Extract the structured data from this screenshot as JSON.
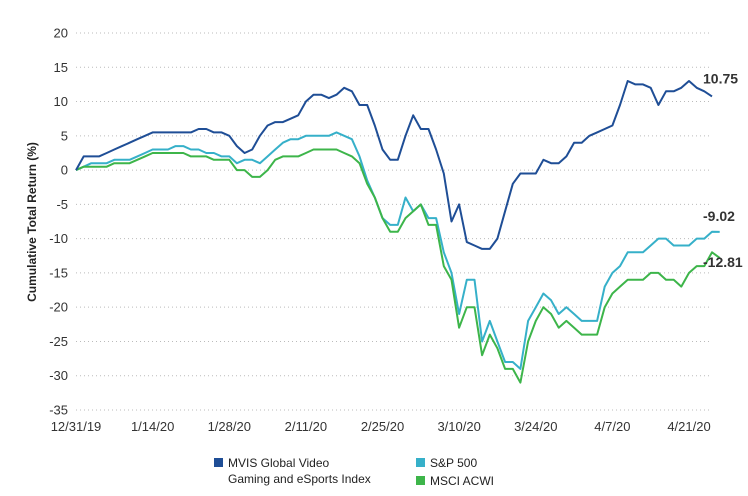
{
  "chart_data": {
    "type": "line",
    "title": "",
    "xlabel": "",
    "ylabel": "Cumulative Total Return (%)",
    "ylim": [
      -35,
      20
    ],
    "yticks": [
      "20",
      "15",
      "10",
      "5",
      "0",
      "-5",
      "-10",
      "-15",
      "-20",
      "-25",
      "-30",
      "-35"
    ],
    "x_tick_labels": [
      "12/31/19",
      "1/14/20",
      "1/28/20",
      "2/11/20",
      "2/25/20",
      "3/10/20",
      "3/24/20",
      "4/7/20",
      "4/21/20"
    ],
    "x_tick_index": [
      0,
      10,
      20,
      30,
      40,
      50,
      60,
      70,
      80
    ],
    "grid": true,
    "legend_position": "bottom",
    "series": [
      {
        "name": "MVIS Global Video Gaming and eSports Index",
        "color": "#1f4e96",
        "end_label": "10.75",
        "values": [
          0,
          2,
          2,
          2,
          2.5,
          3,
          3.5,
          4,
          4.5,
          5,
          5.5,
          5.5,
          5.5,
          5.5,
          5.5,
          5.5,
          6,
          6,
          5.5,
          5.5,
          5,
          3.5,
          2.5,
          3,
          5,
          6.5,
          7,
          7,
          7.5,
          8,
          10,
          11,
          11,
          10.5,
          11,
          12,
          11.5,
          9.5,
          9.5,
          6.5,
          3,
          1.5,
          1.5,
          5,
          8,
          6,
          6,
          3,
          -0.5,
          -7.5,
          -5,
          -10.5,
          -11,
          -11.5,
          -11.5,
          -10,
          -6,
          -2,
          -0.5,
          -0.5,
          -0.5,
          1.5,
          1,
          1,
          2,
          4,
          4,
          5,
          5.5,
          6,
          6.5,
          9.5,
          13,
          12.5,
          12.5,
          12,
          9.5,
          11.5,
          11.5,
          12,
          13,
          12,
          11.5,
          10.75
        ]
      },
      {
        "name": "S&P 500",
        "color": "#36b0c9",
        "end_label": "-9.02",
        "values": [
          0,
          0.5,
          1,
          1,
          1,
          1.5,
          1.5,
          1.5,
          2,
          2.5,
          3,
          3,
          3,
          3.5,
          3.5,
          3,
          3,
          2.5,
          2.5,
          2,
          2,
          1,
          1.5,
          1.5,
          1,
          2,
          3,
          4,
          4.5,
          4.5,
          5,
          5,
          5,
          5,
          5.5,
          5,
          4.5,
          2,
          -1.5,
          -4,
          -7,
          -8,
          -8,
          -4,
          -6,
          -5,
          -7,
          -7,
          -12,
          -15,
          -21,
          -16,
          -16,
          -25,
          -22,
          -25,
          -28,
          -28,
          -29,
          -22,
          -20,
          -18,
          -19,
          -21,
          -20,
          -21,
          -22,
          -22,
          -22,
          -17,
          -15,
          -14,
          -12,
          -12,
          -12,
          -11,
          -10,
          -10,
          -11,
          -11,
          -11,
          -10,
          -10,
          -9,
          -9.02
        ]
      },
      {
        "name": "MSCI ACWI",
        "color": "#3db54a",
        "end_label": "-12.81",
        "values": [
          0,
          0.5,
          0.5,
          0.5,
          0.5,
          1,
          1,
          1,
          1.5,
          2,
          2.5,
          2.5,
          2.5,
          2.5,
          2.5,
          2,
          2,
          2,
          1.5,
          1.5,
          1.5,
          0,
          0,
          -1,
          -1,
          0,
          1.5,
          2,
          2,
          2,
          2.5,
          3,
          3,
          3,
          3,
          2.5,
          2,
          1,
          -2,
          -4,
          -7,
          -9,
          -9,
          -7,
          -6,
          -5,
          -8,
          -8,
          -14,
          -16,
          -23,
          -20,
          -20,
          -27,
          -24,
          -26,
          -29,
          -29,
          -31,
          -25,
          -22,
          -20,
          -21,
          -23,
          -22,
          -23,
          -24,
          -24,
          -24,
          -20,
          -18,
          -17,
          -16,
          -16,
          -16,
          -15,
          -15,
          -16,
          -16,
          -17,
          -15,
          -14,
          -14,
          -12,
          -12.81
        ]
      }
    ]
  }
}
